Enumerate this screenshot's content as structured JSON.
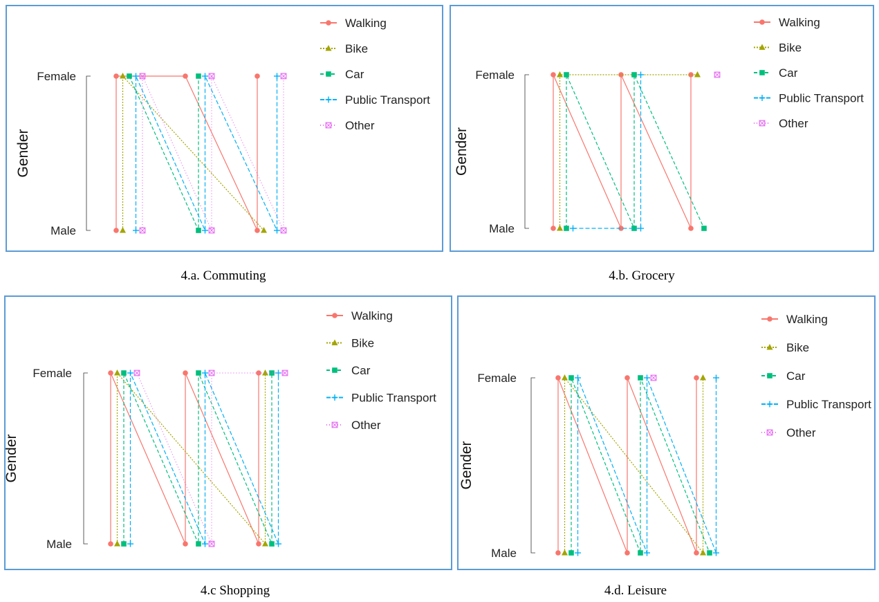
{
  "colors": {
    "Walking": "#f8766d",
    "Bike": "#a3a500",
    "Car": "#00bf7d",
    "Public Transport": "#00b0f6",
    "Other": "#e76bf3",
    "frame": "#5b9bd5"
  },
  "legend_order": [
    "Walking",
    "Bike",
    "Car",
    "Public Transport",
    "Other"
  ],
  "chart_data": [
    {
      "type": "line",
      "caption": "4.a. Commuting",
      "ylabel": "Gender",
      "y_categories": [
        "Male",
        "Female"
      ],
      "clusters": 3,
      "points": {
        "Walking": [
          [
            1,
            "Male"
          ],
          [
            1,
            "Female"
          ],
          [
            2,
            "Female"
          ],
          [
            3,
            "Male"
          ],
          [
            3,
            "Female"
          ]
        ],
        "Bike": [
          [
            1,
            "Male"
          ],
          [
            1,
            "Female"
          ],
          [
            3,
            "Male"
          ]
        ],
        "Car": [
          [
            1,
            "Female"
          ],
          [
            2,
            "Male"
          ],
          [
            2,
            "Female"
          ]
        ],
        "Public Transport": [
          [
            1,
            "Male"
          ],
          [
            1,
            "Female"
          ],
          [
            2,
            "Male"
          ],
          [
            2,
            "Female"
          ],
          [
            3,
            "Male"
          ],
          [
            3,
            "Female"
          ]
        ],
        "Other": [
          [
            1,
            "Male"
          ],
          [
            1,
            "Female"
          ],
          [
            2,
            "Male"
          ],
          [
            2,
            "Female"
          ],
          [
            3,
            "Male"
          ],
          [
            3,
            "Female"
          ]
        ]
      }
    },
    {
      "type": "line",
      "caption": "4.b. Grocery",
      "ylabel": "Gender",
      "y_categories": [
        "Male",
        "Female"
      ],
      "clusters": 3,
      "points": {
        "Walking": [
          [
            1,
            "Male"
          ],
          [
            1,
            "Female"
          ],
          [
            2,
            "Male"
          ],
          [
            2,
            "Female"
          ],
          [
            3,
            "Male"
          ],
          [
            3,
            "Female"
          ]
        ],
        "Bike": [
          [
            1,
            "Male"
          ],
          [
            1,
            "Female"
          ],
          [
            3,
            "Female"
          ]
        ],
        "Car": [
          [
            1,
            "Male"
          ],
          [
            1,
            "Female"
          ],
          [
            2,
            "Male"
          ],
          [
            2,
            "Female"
          ],
          [
            3,
            "Male"
          ]
        ],
        "Public Transport": [
          [
            1,
            "Male"
          ],
          [
            2,
            "Male"
          ],
          [
            2,
            "Female"
          ]
        ],
        "Other": [
          [
            3,
            "Female"
          ]
        ]
      }
    },
    {
      "type": "line",
      "caption": "4.c Shopping",
      "ylabel": "Gender",
      "y_categories": [
        "Male",
        "Female"
      ],
      "clusters": 3,
      "points": {
        "Walking": [
          [
            1,
            "Male"
          ],
          [
            1,
            "Female"
          ],
          [
            2,
            "Male"
          ],
          [
            2,
            "Female"
          ],
          [
            3,
            "Male"
          ],
          [
            3,
            "Female"
          ]
        ],
        "Bike": [
          [
            1,
            "Male"
          ],
          [
            1,
            "Female"
          ],
          [
            3,
            "Male"
          ],
          [
            3,
            "Female"
          ]
        ],
        "Car": [
          [
            1,
            "Male"
          ],
          [
            1,
            "Female"
          ],
          [
            2,
            "Male"
          ],
          [
            2,
            "Female"
          ],
          [
            3,
            "Male"
          ],
          [
            3,
            "Female"
          ]
        ],
        "Public Transport": [
          [
            1,
            "Male"
          ],
          [
            1,
            "Female"
          ],
          [
            2,
            "Male"
          ],
          [
            2,
            "Female"
          ],
          [
            3,
            "Male"
          ],
          [
            3,
            "Female"
          ]
        ],
        "Other": [
          [
            1,
            "Female"
          ],
          [
            2,
            "Male"
          ],
          [
            2,
            "Female"
          ],
          [
            3,
            "Female"
          ]
        ]
      }
    },
    {
      "type": "line",
      "caption": "4.d. Leisure",
      "ylabel": "Gender",
      "y_categories": [
        "Male",
        "Female"
      ],
      "clusters": 3,
      "points": {
        "Walking": [
          [
            1,
            "Male"
          ],
          [
            1,
            "Female"
          ],
          [
            2,
            "Male"
          ],
          [
            2,
            "Female"
          ],
          [
            3,
            "Male"
          ],
          [
            3,
            "Female"
          ]
        ],
        "Bike": [
          [
            1,
            "Male"
          ],
          [
            1,
            "Female"
          ],
          [
            3,
            "Male"
          ],
          [
            3,
            "Female"
          ]
        ],
        "Car": [
          [
            1,
            "Male"
          ],
          [
            1,
            "Female"
          ],
          [
            2,
            "Male"
          ],
          [
            2,
            "Female"
          ],
          [
            3,
            "Male"
          ]
        ],
        "Public Transport": [
          [
            1,
            "Male"
          ],
          [
            1,
            "Female"
          ],
          [
            2,
            "Male"
          ],
          [
            2,
            "Female"
          ],
          [
            3,
            "Male"
          ],
          [
            3,
            "Female"
          ]
        ],
        "Other": [
          [
            2,
            "Female"
          ]
        ]
      }
    }
  ]
}
